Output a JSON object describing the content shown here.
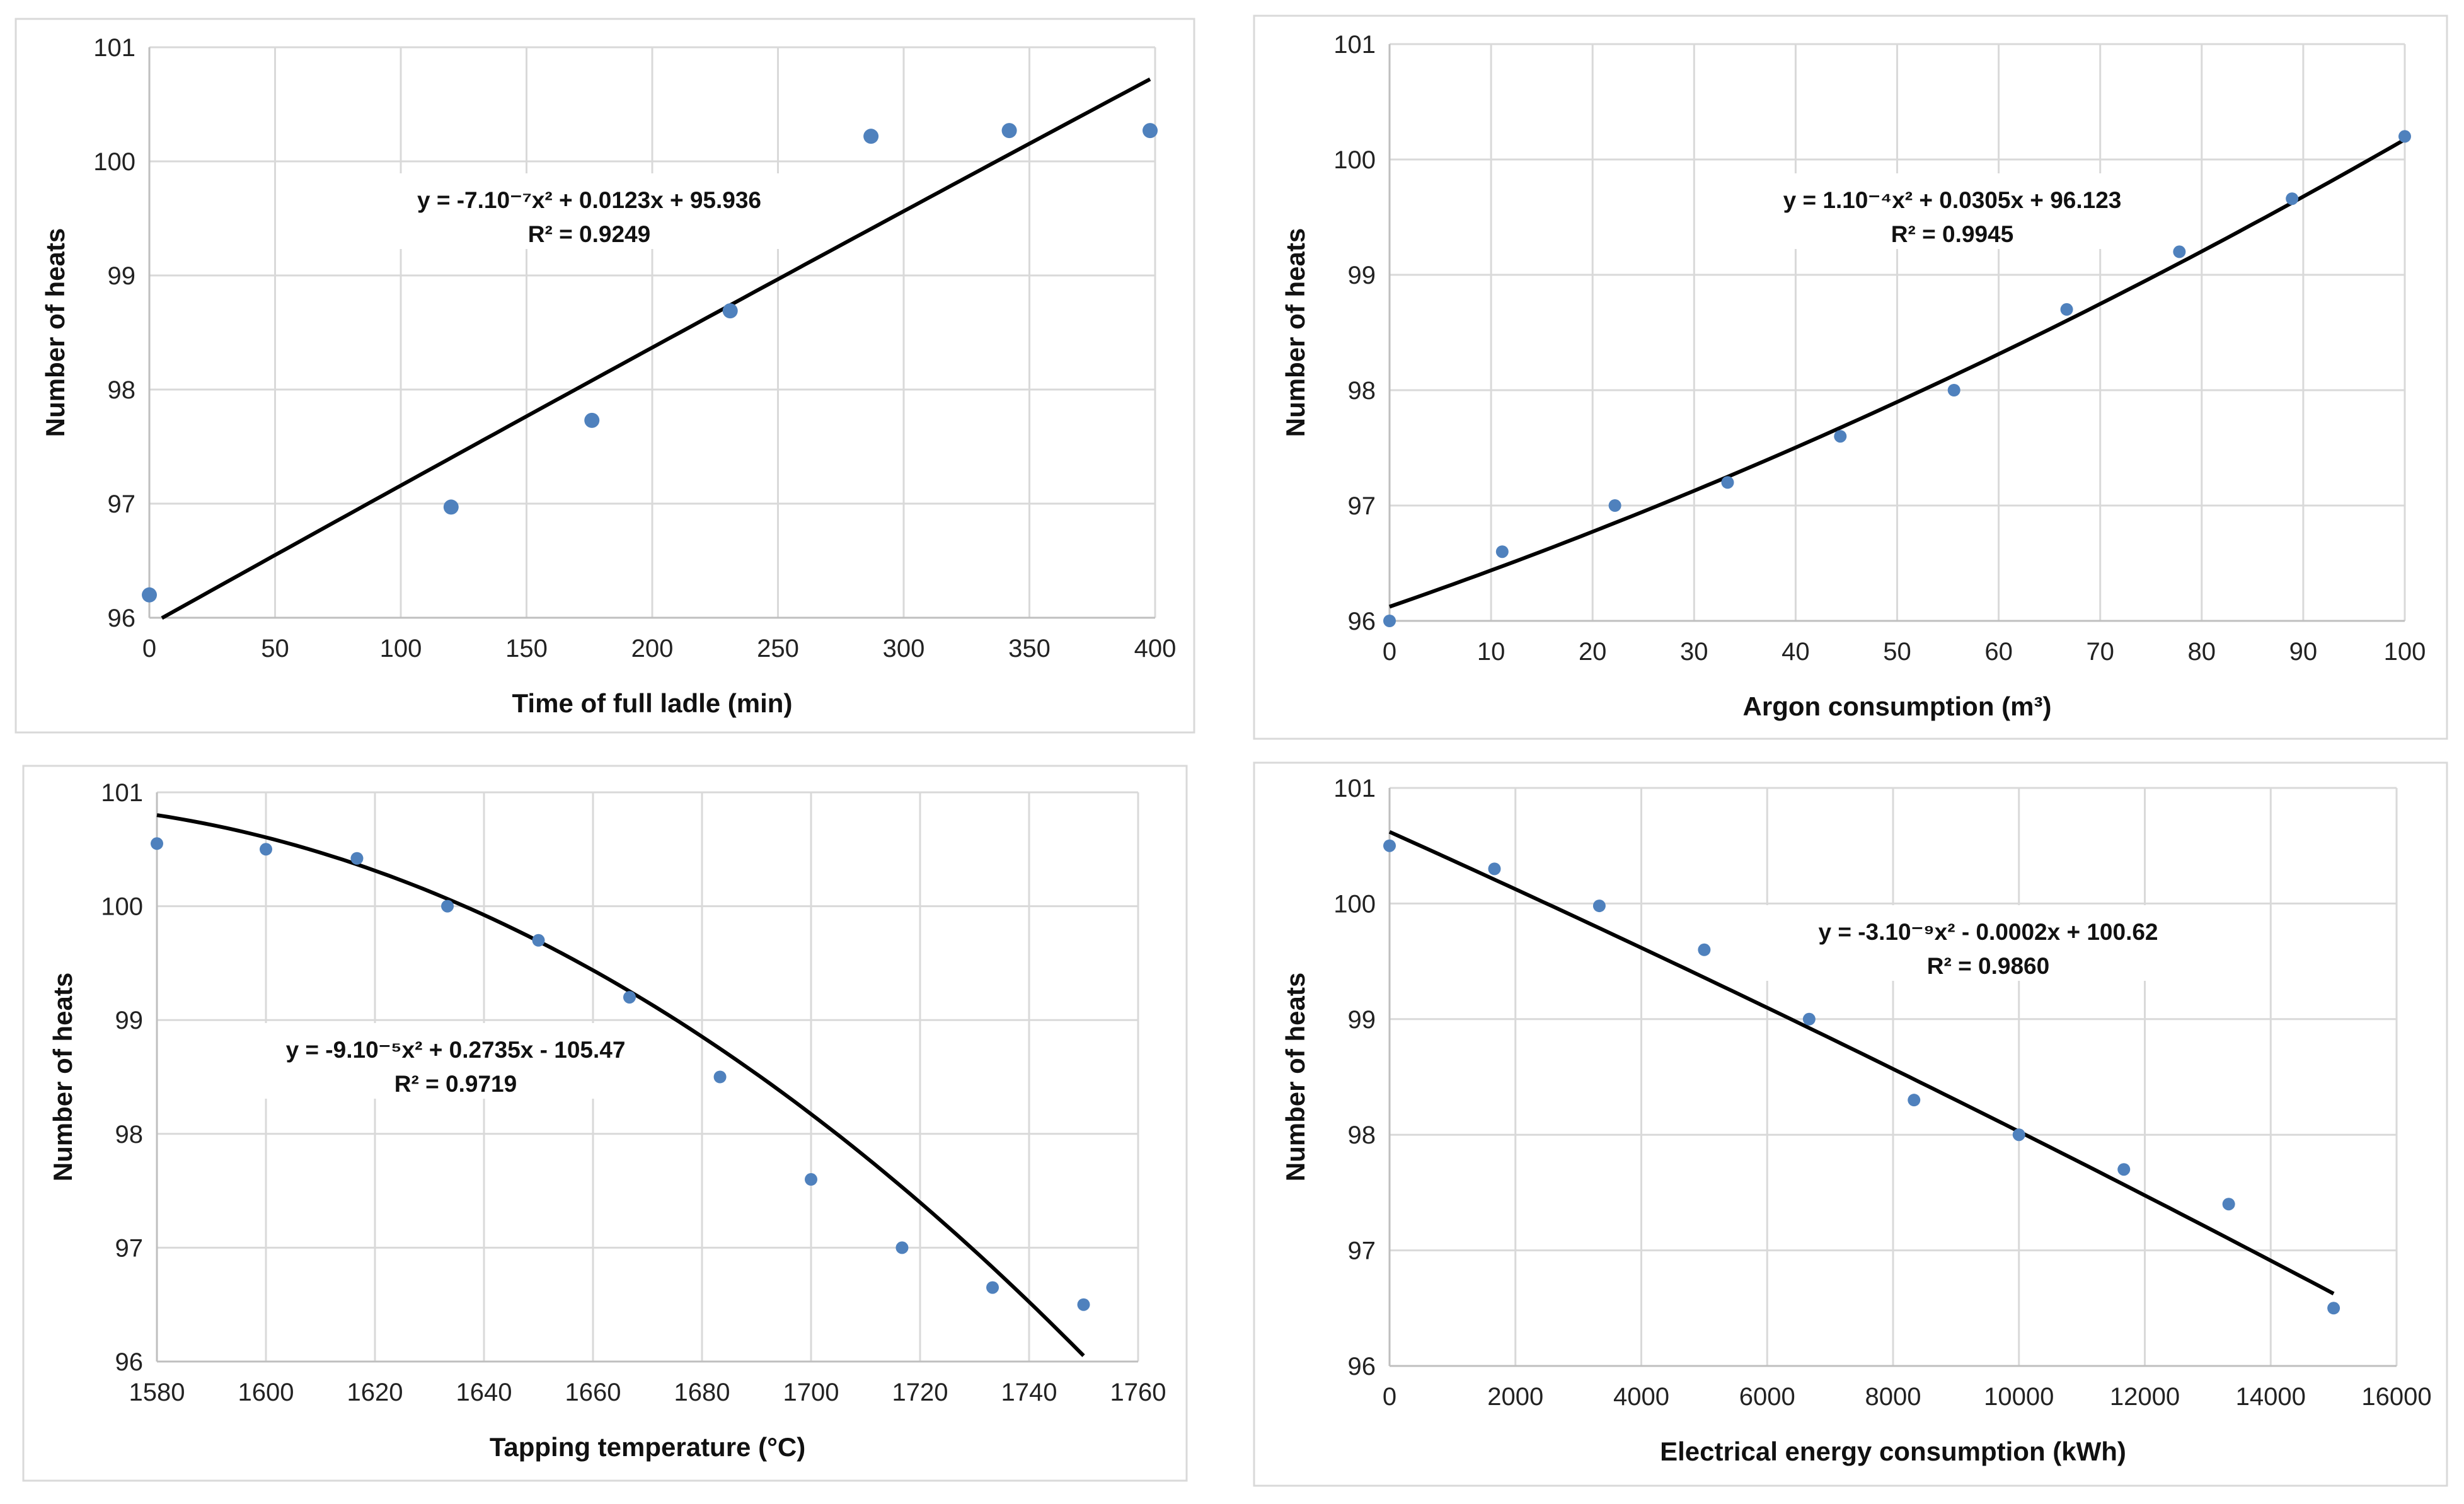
{
  "chart_data": [
    {
      "type": "scatter",
      "xlabel": "Time of full ladle (min)",
      "ylabel": "Number of heats",
      "xlim": [
        0,
        400
      ],
      "ylim": [
        96,
        101
      ],
      "xticks": [
        0,
        50,
        100,
        150,
        200,
        250,
        300,
        350,
        400
      ],
      "yticks": [
        96,
        97,
        98,
        99,
        100,
        101
      ],
      "grid": true,
      "points": {
        "x": [
          0,
          120,
          176,
          231,
          287,
          342,
          398
        ],
        "y": [
          96.2,
          96.97,
          97.73,
          98.69,
          100.22,
          100.27,
          100.27
        ]
      },
      "trendline": {
        "type": "polynomial",
        "equation": "y = -7.10⁻⁷x² + 0.0123x + 95.936",
        "r2": "R² = 0.9249"
      },
      "marker_color": "#4f81bd",
      "line_color": "#000000"
    },
    {
      "type": "scatter",
      "xlabel": "Argon consumption (m³)",
      "ylabel": "Number of heats",
      "xlim": [
        0,
        100
      ],
      "ylim": [
        96,
        101
      ],
      "xticks": [
        0,
        10,
        20,
        30,
        40,
        50,
        60,
        70,
        80,
        90,
        100
      ],
      "yticks": [
        96,
        97,
        98,
        99,
        100,
        101
      ],
      "grid": true,
      "points": {
        "x": [
          0,
          11.1,
          22.2,
          33.3,
          44.4,
          55.6,
          66.7,
          77.8,
          88.9,
          100
        ],
        "y": [
          96.0,
          96.6,
          97.0,
          97.2,
          97.6,
          98.0,
          98.7,
          99.2,
          99.66,
          100.2
        ]
      },
      "trendline": {
        "type": "polynomial",
        "equation": "y = 1.10⁻⁴x² + 0.0305x + 96.123",
        "r2": "R² = 0.9945"
      },
      "marker_color": "#4f81bd",
      "line_color": "#000000"
    },
    {
      "type": "scatter",
      "xlabel": "Tapping temperature (°C)",
      "ylabel": "Number of heats",
      "xlim": [
        1580,
        1760
      ],
      "ylim": [
        96,
        101
      ],
      "xticks": [
        1580,
        1600,
        1620,
        1640,
        1660,
        1680,
        1700,
        1720,
        1740,
        1760
      ],
      "yticks": [
        96,
        97,
        98,
        99,
        100,
        101
      ],
      "grid": true,
      "points": {
        "x": [
          1580,
          1600,
          1616.7,
          1633.3,
          1650,
          1666.7,
          1683.3,
          1700,
          1716.7,
          1733.3,
          1750
        ],
        "y": [
          100.55,
          100.5,
          100.42,
          100.0,
          99.7,
          99.2,
          98.5,
          97.6,
          97.0,
          96.65,
          96.5
        ]
      },
      "trendline": {
        "type": "polynomial",
        "equation": "y = -9.10⁻⁵x² + 0.2735x - 105.47",
        "r2": "R² = 0.9719"
      },
      "marker_color": "#4f81bd",
      "line_color": "#000000"
    },
    {
      "type": "scatter",
      "xlabel": "Electrical energy consumption (kWh)",
      "ylabel": "Number of heats",
      "xlim": [
        0,
        16000
      ],
      "ylim": [
        96,
        101
      ],
      "xticks": [
        0,
        2000,
        4000,
        6000,
        8000,
        10000,
        12000,
        14000,
        16000
      ],
      "yticks": [
        96,
        97,
        98,
        99,
        100,
        101
      ],
      "grid": true,
      "points": {
        "x": [
          0,
          1667,
          3333,
          5000,
          6667,
          8333,
          10000,
          11667,
          13333,
          15000
        ],
        "y": [
          100.5,
          100.3,
          99.98,
          99.6,
          99.0,
          98.3,
          98.0,
          97.7,
          97.4,
          96.5
        ]
      },
      "trendline": {
        "type": "polynomial",
        "equation": "y = -3.10⁻⁹x² - 0.0002x + 100.62",
        "r2": "R² = 0.9860"
      },
      "marker_color": "#4f81bd",
      "line_color": "#000000"
    }
  ]
}
